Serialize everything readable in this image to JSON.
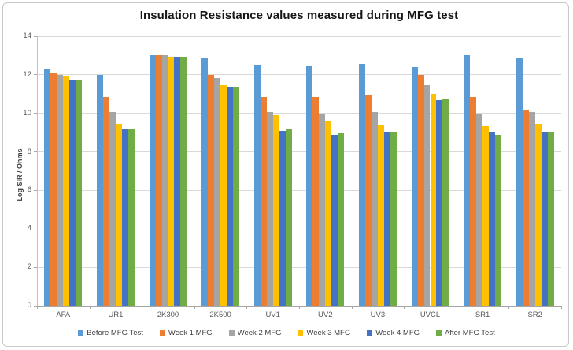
{
  "chart_data": {
    "type": "bar",
    "title": "Insulation Resistance values measured during MFG test",
    "xlabel": "",
    "ylabel": "Log SIR / Ohms",
    "ylim": [
      0,
      14
    ],
    "yticks": [
      0,
      2,
      4,
      6,
      8,
      10,
      12,
      14
    ],
    "grid": true,
    "legend_position": "bottom",
    "categories": [
      "AFA",
      "UR1",
      "2K300",
      "2K500",
      "UV1",
      "UV2",
      "UV3",
      "UVCL",
      "SR1",
      "SR2"
    ],
    "series": [
      {
        "name": "Before MFG Test",
        "color": "#5B9BD5",
        "values": [
          12.3,
          12.0,
          13.0,
          12.9,
          12.5,
          12.45,
          12.55,
          12.4,
          13.0,
          12.9
        ]
      },
      {
        "name": "Week 1 MFG",
        "color": "#ED7D31",
        "values": [
          12.1,
          10.85,
          13.0,
          12.0,
          10.85,
          10.85,
          10.95,
          12.0,
          10.85,
          10.15
        ]
      },
      {
        "name": "Week 2 MFG",
        "color": "#A5A5A5",
        "values": [
          12.0,
          10.05,
          13.0,
          11.85,
          10.05,
          10.0,
          10.05,
          11.45,
          10.0,
          10.05
        ]
      },
      {
        "name": "Week 3 MFG",
        "color": "#FFC000",
        "values": [
          11.9,
          9.45,
          12.95,
          11.45,
          9.9,
          9.6,
          9.4,
          11.0,
          9.35,
          9.45
        ]
      },
      {
        "name": "Week 4 MFG",
        "color": "#4472C4",
        "values": [
          11.7,
          9.15,
          12.95,
          11.4,
          9.1,
          8.9,
          9.05,
          10.7,
          9.0,
          9.0
        ]
      },
      {
        "name": "After MFG Test",
        "color": "#70AD47",
        "values": [
          11.7,
          9.15,
          12.95,
          11.35,
          9.15,
          8.95,
          9.0,
          10.75,
          8.9,
          9.05
        ]
      }
    ]
  }
}
